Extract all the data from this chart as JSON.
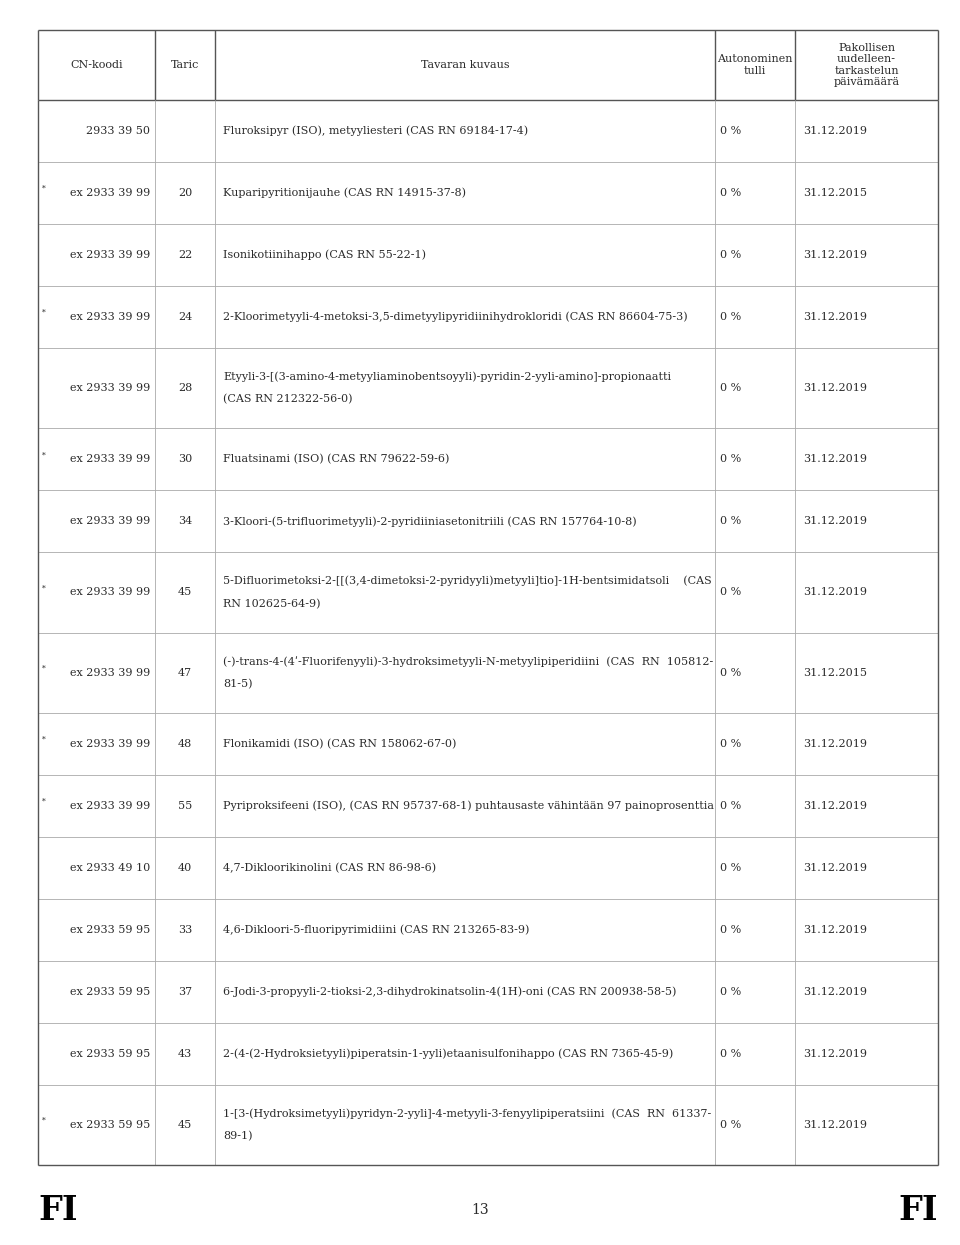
{
  "page_number": "13",
  "bg_color": "#ffffff",
  "text_color": "#2b2b2b",
  "header": {
    "col1": "CN-koodi",
    "col2": "Taric",
    "col3": "Tavaran kuvaus",
    "col4": "Autonominen\ntulli",
    "col5": "Pakollisen\nuudelleen-\ntarkastelun\npäivämäärä"
  },
  "rows": [
    {
      "cn": "2933 39 50",
      "taric": "",
      "desc": "Fluroksipyr (ISO), metyyliesteri (CAS RN 69184-17-4)",
      "tulli": "0 %",
      "date": "31.12.2019",
      "star": false,
      "tall": false
    },
    {
      "cn": "ex 2933 39 99",
      "taric": "20",
      "desc": "Kuparipyritionijauhe (CAS RN 14915-37-8)",
      "tulli": "0 %",
      "date": "31.12.2015",
      "star": true,
      "tall": false
    },
    {
      "cn": "ex 2933 39 99",
      "taric": "22",
      "desc": "Isonikotiinihappo (CAS RN 55-22-1)",
      "tulli": "0 %",
      "date": "31.12.2019",
      "star": false,
      "tall": false
    },
    {
      "cn": "ex 2933 39 99",
      "taric": "24",
      "desc": "2-Kloorimetyyli-4-metoksi-3,5-dimetyylipyridiinihydrokloridi (CAS RN 86604-75-3)",
      "tulli": "0 %",
      "date": "31.12.2019",
      "star": true,
      "tall": false
    },
    {
      "cn": "ex 2933 39 99",
      "taric": "28",
      "desc": "Etyyli-3-[(3-amino-4-metyyliaminobentsoyyli)-pyridin-2-yyli-amino]-propionaatti\n(CAS RN 212322-56-0)",
      "tulli": "0 %",
      "date": "31.12.2019",
      "star": false,
      "tall": true
    },
    {
      "cn": "ex 2933 39 99",
      "taric": "30",
      "desc": "Fluatsinami (ISO) (CAS RN 79622-59-6)",
      "tulli": "0 %",
      "date": "31.12.2019",
      "star": true,
      "tall": false
    },
    {
      "cn": "ex 2933 39 99",
      "taric": "34",
      "desc": "3-Kloori-(5-trifluorimetyyli)-2-pyridiiniasetonitriili (CAS RN 157764-10-8)",
      "tulli": "0 %",
      "date": "31.12.2019",
      "star": false,
      "tall": false
    },
    {
      "cn": "ex 2933 39 99",
      "taric": "45",
      "desc": "5-Difluorimetoksi-2-[[(3,4-dimetoksi-2-pyridyyli)metyyli]tio]-1H-bentsimidatsoli    (CAS\nRN 102625-64-9)",
      "tulli": "0 %",
      "date": "31.12.2019",
      "star": true,
      "tall": true
    },
    {
      "cn": "ex 2933 39 99",
      "taric": "47",
      "desc": "(-)-trans-4-(4ʹ-Fluorifenyyli)-3-hydroksimetyyli-N-metyylipiperidiini  (CAS  RN  105812-\n81-5)",
      "tulli": "0 %",
      "date": "31.12.2015",
      "star": true,
      "tall": true
    },
    {
      "cn": "ex 2933 39 99",
      "taric": "48",
      "desc": "Flonikamidi (ISO) (CAS RN 158062-67-0)",
      "tulli": "0 %",
      "date": "31.12.2019",
      "star": true,
      "tall": false
    },
    {
      "cn": "ex 2933 39 99",
      "taric": "55",
      "desc": "Pyriproksifeeni (ISO), (CAS RN 95737-68-1) puhtausaste vähintään 97 painoprosenttia",
      "tulli": "0 %",
      "date": "31.12.2019",
      "star": true,
      "tall": false
    },
    {
      "cn": "ex 2933 49 10",
      "taric": "40",
      "desc": "4,7-Dikloorikinolini (CAS RN 86-98-6)",
      "tulli": "0 %",
      "date": "31.12.2019",
      "star": false,
      "tall": false
    },
    {
      "cn": "ex 2933 59 95",
      "taric": "33",
      "desc": "4,6-Dikloori-5-fluoripyrimidiini (CAS RN 213265-83-9)",
      "tulli": "0 %",
      "date": "31.12.2019",
      "star": false,
      "tall": false
    },
    {
      "cn": "ex 2933 59 95",
      "taric": "37",
      "desc": "6-Jodi-3-propyyli-2-tioksi-2,3-dihydrokinatsolin-4(1H)-oni (CAS RN 200938-58-5)",
      "tulli": "0 %",
      "date": "31.12.2019",
      "star": false,
      "tall": false
    },
    {
      "cn": "ex 2933 59 95",
      "taric": "43",
      "desc": "2-(4-(2-Hydroksietyyli)piperatsin-1-yyli)etaanisulfonihappo (CAS RN 7365-45-9)",
      "tulli": "0 %",
      "date": "31.12.2019",
      "star": false,
      "tall": false
    },
    {
      "cn": "ex 2933 59 95",
      "taric": "45",
      "desc": "1-[3-(Hydroksimetyyli)pyridyn-2-yyli]-4-metyyli-3-fenyylipiperatsiini  (CAS  RN  61337-\n89-1)",
      "tulli": "0 %",
      "date": "31.12.2019",
      "star": true,
      "tall": true
    }
  ]
}
